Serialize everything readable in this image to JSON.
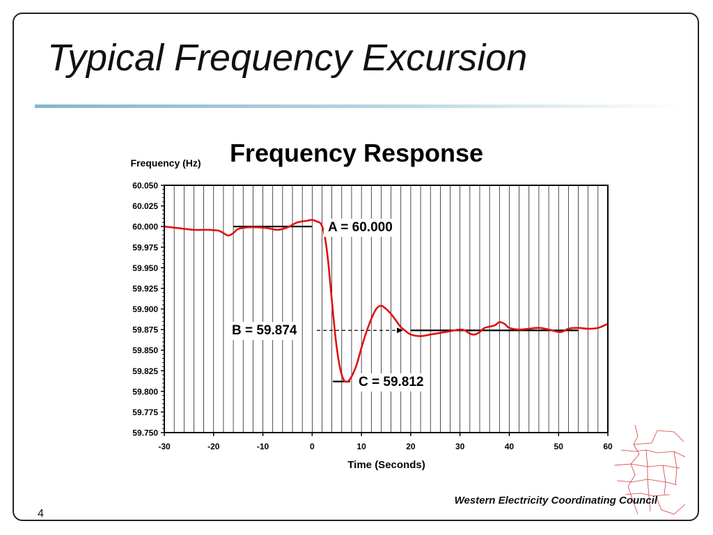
{
  "slide": {
    "title": "Typical Frequency Excursion",
    "page_number": "4",
    "organization": "Western Electricity Coordinating Council"
  },
  "chart_data": {
    "type": "line",
    "title": "Frequency Response",
    "xlabel": "Time (Seconds)",
    "ylabel": "Frequency (Hz)",
    "xlim": [
      -30,
      60
    ],
    "ylim": [
      59.75,
      60.05
    ],
    "x_ticks": [
      "-30",
      "-20",
      "-10",
      "0",
      "10",
      "20",
      "30",
      "40",
      "50",
      "60"
    ],
    "y_ticks": [
      "60.050",
      "60.025",
      "60.000",
      "59.975",
      "59.950",
      "59.925",
      "59.900",
      "59.875",
      "59.850",
      "59.825",
      "59.800",
      "59.775",
      "59.750"
    ],
    "grid": true,
    "series": [
      {
        "color": "#e01010",
        "points": [
          [
            -30,
            60.0
          ],
          [
            -27,
            59.998
          ],
          [
            -24,
            59.996
          ],
          [
            -21,
            59.996
          ],
          [
            -19,
            59.995
          ],
          [
            -18,
            59.992
          ],
          [
            -17,
            59.989
          ],
          [
            -16,
            59.992
          ],
          [
            -15,
            59.997
          ],
          [
            -13,
            59.999
          ],
          [
            -11,
            59.999
          ],
          [
            -9,
            59.998
          ],
          [
            -7,
            59.996
          ],
          [
            -5,
            59.999
          ],
          [
            -3,
            60.005
          ],
          [
            -1,
            60.007
          ],
          [
            0,
            60.008
          ],
          [
            1,
            60.006
          ],
          [
            1.8,
            60.003
          ],
          [
            2.5,
            59.99
          ],
          [
            3.2,
            59.96
          ],
          [
            4,
            59.91
          ],
          [
            4.8,
            59.862
          ],
          [
            5.6,
            59.83
          ],
          [
            6.4,
            59.814
          ],
          [
            7.2,
            59.812
          ],
          [
            8,
            59.818
          ],
          [
            9,
            59.832
          ],
          [
            10,
            59.853
          ],
          [
            11,
            59.872
          ],
          [
            12,
            59.888
          ],
          [
            13,
            59.9
          ],
          [
            14,
            59.904
          ],
          [
            15,
            59.9
          ],
          [
            16,
            59.894
          ],
          [
            17,
            59.886
          ],
          [
            18,
            59.878
          ],
          [
            19,
            59.873
          ],
          [
            20,
            59.869
          ],
          [
            22,
            59.867
          ],
          [
            24,
            59.869
          ],
          [
            26,
            59.871
          ],
          [
            28,
            59.873
          ],
          [
            30,
            59.875
          ],
          [
            31,
            59.874
          ],
          [
            32,
            59.87
          ],
          [
            33,
            59.869
          ],
          [
            34,
            59.872
          ],
          [
            35,
            59.877
          ],
          [
            37,
            59.88
          ],
          [
            38,
            59.884
          ],
          [
            39,
            59.882
          ],
          [
            40,
            59.877
          ],
          [
            42,
            59.875
          ],
          [
            44,
            59.876
          ],
          [
            46,
            59.877
          ],
          [
            48,
            59.875
          ],
          [
            50,
            59.872
          ],
          [
            51,
            59.873
          ],
          [
            52,
            59.876
          ],
          [
            54,
            59.877
          ],
          [
            56,
            59.876
          ],
          [
            58,
            59.877
          ],
          [
            60,
            59.882
          ]
        ]
      }
    ],
    "reference_lines": [
      {
        "label": "A",
        "value": 60.0,
        "x_from": -16,
        "x_to": 0
      },
      {
        "label": "B",
        "value": 59.874,
        "x_from": 20,
        "x_to": 54
      },
      {
        "label": "C",
        "value": 59.812,
        "x_from": 4.2,
        "x_to": 7.7
      }
    ],
    "annotations": {
      "a": "A = 60.000",
      "b": "B = 59.874",
      "c": "C = 59.812"
    }
  }
}
